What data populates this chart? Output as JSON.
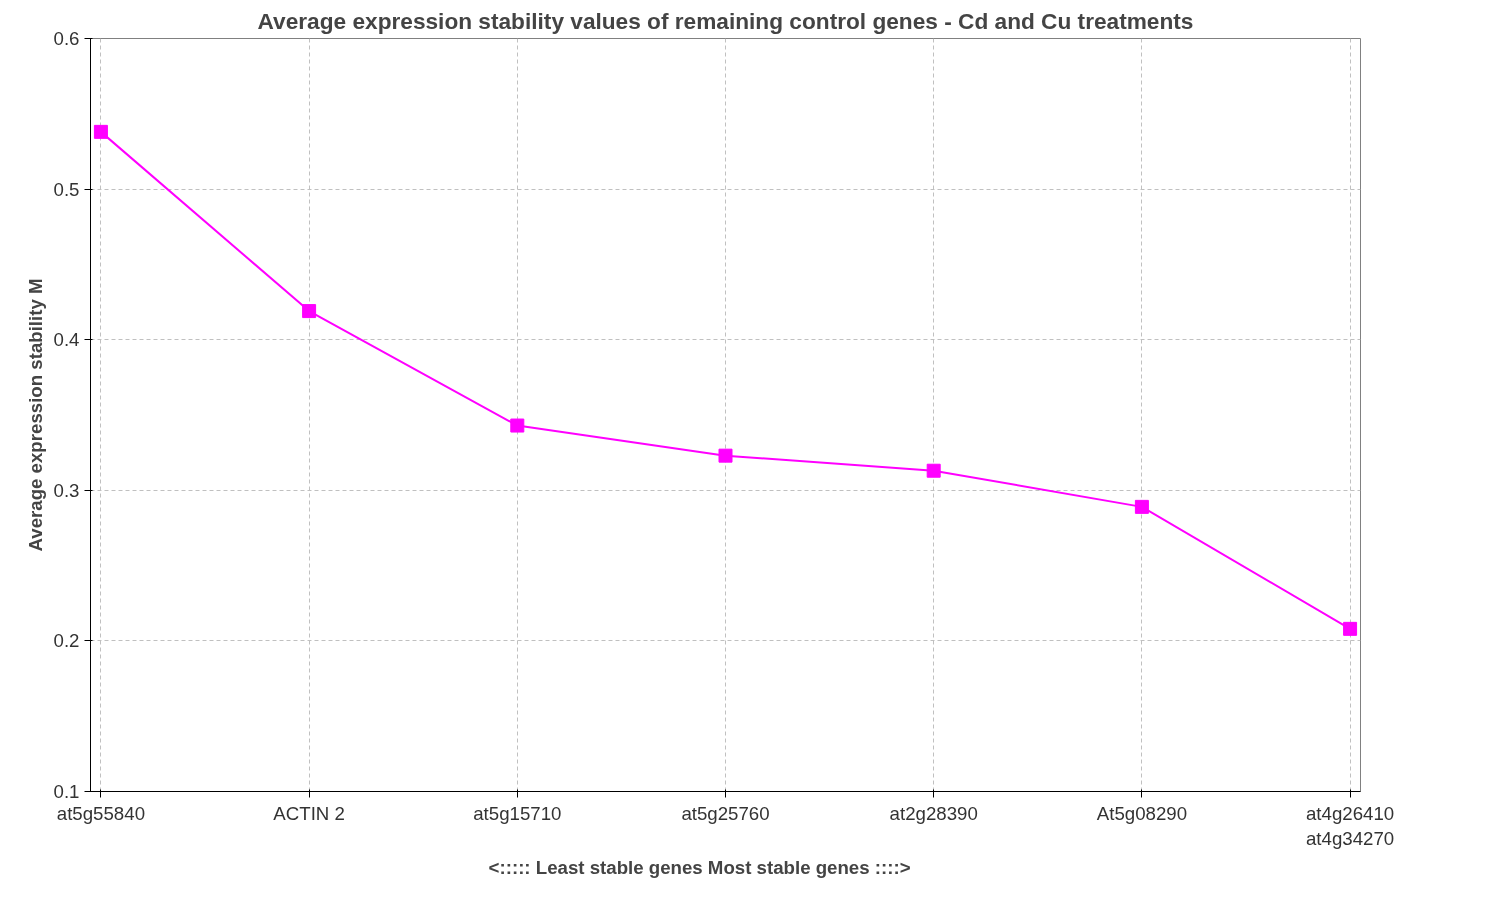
{
  "chart_data": {
    "type": "line",
    "title": "Average expression stability values of remaining control genes - Cd and Cu treatments",
    "xlabel": "<:::::  Least stable genes          Most stable genes ::::>",
    "ylabel": "Average expression stability M",
    "categories": [
      "at5g55840",
      "ACTIN 2",
      "at5g15710",
      "at5g25760",
      "at2g28390",
      "At5g08290",
      "at4g26410\nat4g34270"
    ],
    "series": [
      {
        "color": "#ff00ff",
        "values": [
          0.538,
          0.419,
          0.343,
          0.323,
          0.313,
          0.289,
          0.208
        ]
      }
    ],
    "ylim": [
      0.1,
      0.6
    ],
    "yticks": [
      0.1,
      0.2,
      0.3,
      0.4,
      0.5,
      0.6
    ],
    "grid": true,
    "marker": "square",
    "line_style": "solid"
  }
}
